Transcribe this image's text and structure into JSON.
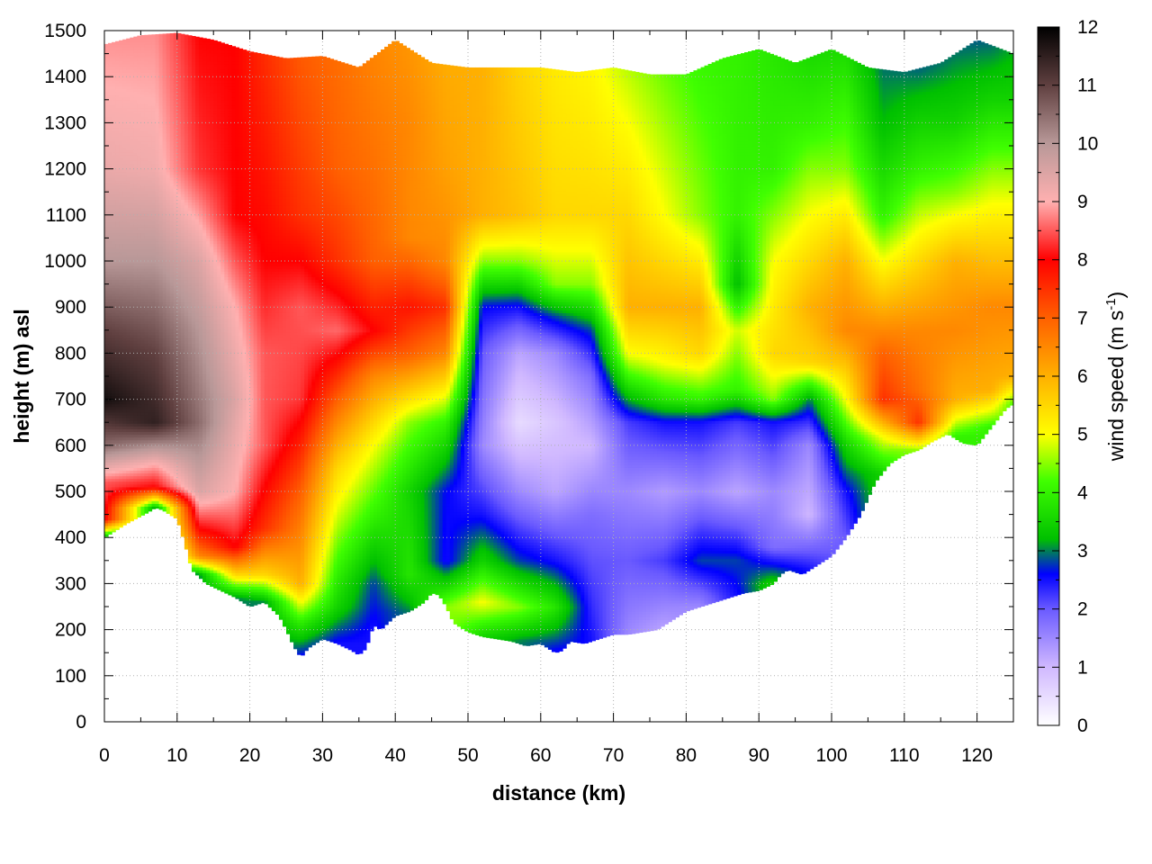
{
  "chart_data": {
    "type": "heatmap",
    "title": "",
    "xlabel": "distance (km)",
    "ylabel": "height (m) asl",
    "xlim": [
      0,
      125
    ],
    "ylim": [
      0,
      1500
    ],
    "x_ticks": [
      "0",
      "10",
      "20",
      "30",
      "40",
      "50",
      "60",
      "70",
      "80",
      "90",
      "100",
      "110",
      "120"
    ],
    "y_ticks": [
      "0",
      "100",
      "200",
      "300",
      "400",
      "500",
      "600",
      "700",
      "800",
      "900",
      "1000",
      "1100",
      "1200",
      "1300",
      "1400",
      "1500"
    ],
    "grid": true,
    "colorbar": {
      "label_main": "wind speed (m s",
      "label_sup": "-1",
      "label_close": ")",
      "range": [
        0,
        12
      ],
      "ticks": [
        "0",
        "1",
        "2",
        "3",
        "4",
        "5",
        "6",
        "7",
        "8",
        "9",
        "10",
        "11",
        "12"
      ],
      "colors": [
        [
          0,
          "#ffffff"
        ],
        [
          1,
          "#d0b8ff"
        ],
        [
          2,
          "#6a5aff"
        ],
        [
          2.6,
          "#0000ff"
        ],
        [
          3.2,
          "#00c000"
        ],
        [
          4.2,
          "#40ff00"
        ],
        [
          5,
          "#ffff00"
        ],
        [
          6,
          "#ffb000"
        ],
        [
          7,
          "#ff6000"
        ],
        [
          8,
          "#ff0000"
        ],
        [
          9,
          "#ffb0b0"
        ],
        [
          10,
          "#b89898"
        ],
        [
          11,
          "#604040"
        ],
        [
          12,
          "#000000"
        ]
      ]
    },
    "terrain": {
      "x": [
        0,
        3,
        6,
        7,
        8,
        10,
        11,
        12,
        14,
        16,
        18,
        20,
        22,
        24,
        25,
        26,
        27,
        28,
        30,
        32,
        34,
        35,
        36,
        37,
        38,
        40,
        42,
        44,
        45,
        46,
        47,
        48,
        50,
        52,
        54,
        56,
        58,
        60,
        62,
        63,
        64,
        66,
        68,
        70,
        72,
        74,
        76,
        78,
        80,
        82,
        84,
        86,
        88,
        90,
        92,
        93,
        94,
        96,
        98,
        100,
        102,
        104,
        106,
        108,
        110,
        112,
        114,
        116,
        118,
        120,
        122,
        124,
        125
      ],
      "y": [
        400,
        430,
        455,
        465,
        460,
        440,
        390,
        330,
        300,
        285,
        270,
        250,
        260,
        230,
        200,
        165,
        140,
        160,
        180,
        170,
        155,
        145,
        160,
        210,
        200,
        230,
        240,
        260,
        280,
        275,
        250,
        215,
        195,
        185,
        180,
        175,
        165,
        170,
        150,
        155,
        175,
        170,
        180,
        190,
        190,
        195,
        200,
        220,
        240,
        250,
        260,
        270,
        280,
        285,
        300,
        320,
        330,
        320,
        340,
        360,
        400,
        450,
        520,
        560,
        580,
        590,
        610,
        625,
        605,
        600,
        640,
        680,
        690
      ]
    },
    "top_edge": {
      "x": [
        0,
        5,
        10,
        15,
        20,
        25,
        30,
        35,
        40,
        45,
        50,
        55,
        60,
        65,
        70,
        75,
        80,
        85,
        90,
        95,
        100,
        105,
        110,
        115,
        120,
        125
      ],
      "y": [
        1470,
        1490,
        1495,
        1480,
        1455,
        1440,
        1445,
        1420,
        1480,
        1430,
        1420,
        1420,
        1420,
        1410,
        1420,
        1405,
        1405,
        1440,
        1460,
        1430,
        1460,
        1420,
        1410,
        1430,
        1480,
        1450
      ]
    },
    "speed_field": [
      {
        "x": 0,
        "bands": [
          [
            400,
            3.0
          ],
          [
            440,
            8.0
          ],
          [
            520,
            8.5
          ],
          [
            600,
            10.5
          ],
          [
            700,
            11.8
          ],
          [
            850,
            11.0
          ],
          [
            1000,
            10.0
          ],
          [
            1200,
            9.3
          ],
          [
            1500,
            8.8
          ]
        ]
      },
      {
        "x": 7,
        "bands": [
          [
            465,
            3.0
          ],
          [
            510,
            8.0
          ],
          [
            560,
            9.0
          ],
          [
            650,
            11.5
          ],
          [
            800,
            11.0
          ],
          [
            1000,
            10.0
          ],
          [
            1200,
            9.2
          ],
          [
            1500,
            8.8
          ]
        ]
      },
      {
        "x": 13,
        "bands": [
          [
            320,
            3.0
          ],
          [
            360,
            6.5
          ],
          [
            420,
            8.0
          ],
          [
            500,
            9.5
          ],
          [
            650,
            10.5
          ],
          [
            850,
            10.0
          ],
          [
            1000,
            9.5
          ],
          [
            1200,
            8.3
          ],
          [
            1500,
            8.0
          ]
        ]
      },
      {
        "x": 18,
        "bands": [
          [
            270,
            3.0
          ],
          [
            320,
            5.5
          ],
          [
            380,
            8.0
          ],
          [
            500,
            9.0
          ],
          [
            700,
            9.5
          ],
          [
            900,
            9.0
          ],
          [
            1100,
            8.0
          ],
          [
            1500,
            8.0
          ]
        ]
      },
      {
        "x": 22,
        "bands": [
          [
            260,
            3.0
          ],
          [
            320,
            5.5
          ],
          [
            420,
            7.5
          ],
          [
            600,
            8.5
          ],
          [
            800,
            8.5
          ],
          [
            1000,
            8.0
          ],
          [
            1200,
            7.8
          ],
          [
            1500,
            7.5
          ]
        ]
      },
      {
        "x": 27,
        "bands": [
          [
            140,
            2.5
          ],
          [
            220,
            4.0
          ],
          [
            300,
            6.0
          ],
          [
            500,
            7.0
          ],
          [
            700,
            8.3
          ],
          [
            900,
            8.5
          ],
          [
            1100,
            7.5
          ],
          [
            1500,
            7.0
          ]
        ]
      },
      {
        "x": 32,
        "bands": [
          [
            170,
            2.5
          ],
          [
            250,
            3.5
          ],
          [
            400,
            4.5
          ],
          [
            550,
            5.5
          ],
          [
            700,
            7.0
          ],
          [
            850,
            8.6
          ],
          [
            1000,
            7.5
          ],
          [
            1200,
            7.0
          ],
          [
            1500,
            6.8
          ]
        ]
      },
      {
        "x": 37,
        "bands": [
          [
            200,
            2.5
          ],
          [
            300,
            2.8
          ],
          [
            450,
            4.0
          ],
          [
            600,
            5.0
          ],
          [
            750,
            6.5
          ],
          [
            850,
            8.0
          ],
          [
            1000,
            7.0
          ],
          [
            1200,
            6.8
          ],
          [
            1500,
            6.5
          ]
        ]
      },
      {
        "x": 42,
        "bands": [
          [
            240,
            3.0
          ],
          [
            320,
            3.8
          ],
          [
            500,
            3.5
          ],
          [
            650,
            4.5
          ],
          [
            800,
            7.0
          ],
          [
            900,
            7.8
          ],
          [
            1050,
            6.5
          ],
          [
            1300,
            6.5
          ],
          [
            1500,
            6.3
          ]
        ]
      },
      {
        "x": 47,
        "bands": [
          [
            250,
            4.5
          ],
          [
            350,
            2.5
          ],
          [
            500,
            2.6
          ],
          [
            650,
            4.0
          ],
          [
            800,
            6.5
          ],
          [
            900,
            7.5
          ],
          [
            1000,
            6.5
          ],
          [
            1200,
            6.2
          ],
          [
            1500,
            6.0
          ]
        ]
      },
      {
        "x": 52,
        "bands": [
          [
            185,
            3.5
          ],
          [
            260,
            5.0
          ],
          [
            350,
            3.5
          ],
          [
            450,
            2.5
          ],
          [
            600,
            1.5
          ],
          [
            800,
            2.0
          ],
          [
            900,
            2.6
          ],
          [
            1000,
            4.5
          ],
          [
            1100,
            6.0
          ],
          [
            1500,
            6.0
          ]
        ]
      },
      {
        "x": 57,
        "bands": [
          [
            175,
            3.0
          ],
          [
            250,
            4.5
          ],
          [
            350,
            2.8
          ],
          [
            500,
            1.5
          ],
          [
            650,
            0.5
          ],
          [
            800,
            1.2
          ],
          [
            900,
            2.5
          ],
          [
            1000,
            4.5
          ],
          [
            1100,
            5.8
          ],
          [
            1500,
            5.5
          ]
        ]
      },
      {
        "x": 62,
        "bands": [
          [
            150,
            2.5
          ],
          [
            250,
            3.8
          ],
          [
            350,
            2.5
          ],
          [
            500,
            1.2
          ],
          [
            650,
            0.8
          ],
          [
            800,
            1.5
          ],
          [
            880,
            2.8
          ],
          [
            950,
            4.5
          ],
          [
            1100,
            5.5
          ],
          [
            1500,
            5.2
          ]
        ]
      },
      {
        "x": 67,
        "bands": [
          [
            175,
            2.5
          ],
          [
            300,
            2.2
          ],
          [
            450,
            1.8
          ],
          [
            600,
            1.0
          ],
          [
            750,
            1.8
          ],
          [
            850,
            2.8
          ],
          [
            950,
            4.5
          ],
          [
            1100,
            5.5
          ],
          [
            1500,
            5.0
          ]
        ]
      },
      {
        "x": 72,
        "bands": [
          [
            190,
            1.5
          ],
          [
            350,
            2.0
          ],
          [
            500,
            1.5
          ],
          [
            650,
            2.2
          ],
          [
            720,
            3.5
          ],
          [
            800,
            5.0
          ],
          [
            900,
            6.0
          ],
          [
            1100,
            5.5
          ],
          [
            1500,
            4.5
          ]
        ]
      },
      {
        "x": 77,
        "bands": [
          [
            200,
            1.2
          ],
          [
            350,
            2.2
          ],
          [
            500,
            1.3
          ],
          [
            650,
            2.5
          ],
          [
            700,
            3.8
          ],
          [
            780,
            5.0
          ],
          [
            900,
            6.0
          ],
          [
            1100,
            5.0
          ],
          [
            1500,
            4.2
          ]
        ]
      },
      {
        "x": 82,
        "bands": [
          [
            250,
            1.5
          ],
          [
            350,
            2.8
          ],
          [
            500,
            1.5
          ],
          [
            650,
            2.5
          ],
          [
            700,
            4.0
          ],
          [
            800,
            5.5
          ],
          [
            900,
            6.0
          ],
          [
            1100,
            4.5
          ],
          [
            1500,
            4.0
          ]
        ]
      },
      {
        "x": 87,
        "bands": [
          [
            270,
            2.5
          ],
          [
            350,
            2.8
          ],
          [
            500,
            1.2
          ],
          [
            650,
            2.2
          ],
          [
            720,
            4.0
          ],
          [
            850,
            4.8
          ],
          [
            950,
            3.2
          ],
          [
            1100,
            4.0
          ],
          [
            1500,
            4.0
          ]
        ]
      },
      {
        "x": 92,
        "bands": [
          [
            300,
            3.5
          ],
          [
            380,
            1.8
          ],
          [
            500,
            1.5
          ],
          [
            650,
            2.5
          ],
          [
            700,
            4.5
          ],
          [
            800,
            5.5
          ],
          [
            1000,
            5.0
          ],
          [
            1200,
            4.0
          ],
          [
            1500,
            3.8
          ]
        ]
      },
      {
        "x": 97,
        "bands": [
          [
            330,
            2.5
          ],
          [
            450,
            1.0
          ],
          [
            600,
            1.5
          ],
          [
            700,
            3.0
          ],
          [
            780,
            5.5
          ],
          [
            900,
            6.0
          ],
          [
            1100,
            5.0
          ],
          [
            1300,
            4.0
          ],
          [
            1500,
            3.5
          ]
        ]
      },
      {
        "x": 102,
        "bands": [
          [
            400,
            2.0
          ],
          [
            500,
            2.5
          ],
          [
            600,
            3.5
          ],
          [
            700,
            5.0
          ],
          [
            850,
            6.5
          ],
          [
            1000,
            6.0
          ],
          [
            1200,
            4.5
          ],
          [
            1500,
            3.5
          ]
        ]
      },
      {
        "x": 107,
        "bands": [
          [
            540,
            3.5
          ],
          [
            620,
            5.0
          ],
          [
            700,
            7.5
          ],
          [
            800,
            7.0
          ],
          [
            950,
            5.5
          ],
          [
            1100,
            4.0
          ],
          [
            1300,
            3.2
          ],
          [
            1500,
            2.8
          ]
        ]
      },
      {
        "x": 112,
        "bands": [
          [
            590,
            4.5
          ],
          [
            650,
            7.5
          ],
          [
            720,
            6.8
          ],
          [
            850,
            6.5
          ],
          [
            1000,
            5.5
          ],
          [
            1200,
            4.0
          ],
          [
            1400,
            3.0
          ],
          [
            1500,
            2.5
          ]
        ]
      },
      {
        "x": 117,
        "bands": [
          [
            620,
            4.0
          ],
          [
            700,
            6.0
          ],
          [
            850,
            6.5
          ],
          [
            1000,
            6.0
          ],
          [
            1150,
            4.5
          ],
          [
            1300,
            3.5
          ],
          [
            1500,
            2.8
          ]
        ]
      },
      {
        "x": 122,
        "bands": [
          [
            640,
            4.0
          ],
          [
            720,
            6.0
          ],
          [
            900,
            6.5
          ],
          [
            1050,
            5.5
          ],
          [
            1200,
            4.5
          ],
          [
            1350,
            3.5
          ],
          [
            1500,
            2.8
          ]
        ]
      },
      {
        "x": 125,
        "bands": [
          [
            690,
            4.2
          ],
          [
            750,
            6.0
          ],
          [
            900,
            6.5
          ],
          [
            1050,
            5.5
          ],
          [
            1200,
            4.5
          ],
          [
            1350,
            3.5
          ],
          [
            1500,
            3.0
          ]
        ]
      }
    ]
  }
}
